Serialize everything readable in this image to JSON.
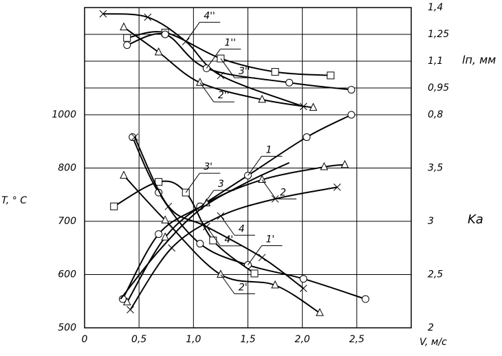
{
  "chart_data": {
    "type": "line",
    "x_label": "V, м/с",
    "y_label": "T, ° C",
    "y_right_label": "Kа",
    "y2_label": "lп, мм",
    "xlim": [
      0,
      3
    ],
    "xticks": [
      0,
      {
        "value": 0.5,
        "label": "0,5"
      },
      {
        "value": 1.0,
        "label": "1,0"
      },
      {
        "value": 1.5,
        "label": "1,5"
      },
      {
        "value": 2.0,
        "label": "2,0"
      },
      {
        "value": 2.5,
        "label": "2,5"
      }
    ],
    "tticks": [
      500,
      600,
      700,
      800,
      1000
    ],
    "ylim": [
      2,
      4
    ],
    "yticks": [
      2,
      {
        "value": 2.5,
        "label": "2,5"
      },
      3,
      {
        "value": 3.5,
        "label": "3,5"
      }
    ],
    "y2lim": [
      0.8,
      1.4
    ],
    "y2ticks": [
      {
        "value": 0.8,
        "label": "0,8"
      },
      {
        "value": 0.95,
        "label": "0,95"
      },
      {
        "value": 1.1,
        "label": "1,1"
      },
      {
        "value": 1.25,
        "label": "1,25"
      },
      {
        "value": 1.4,
        "label": "1,4"
      }
    ],
    "grid": true,
    "series": [
      {
        "name": "1",
        "color": "#000",
        "marker": "circle",
        "x": [
          0.35,
          0.68,
          1.06,
          1.5,
          2.04,
          2.45
        ],
        "values": [
          2.27,
          2.88,
          3.14,
          3.43,
          3.79,
          4.0
        ]
      },
      {
        "name": "2",
        "color": "#000",
        "marker": "triangle",
        "x": [
          0.39,
          0.74,
          1.12,
          1.63,
          2.2,
          2.39
        ],
        "values": [
          2.24,
          2.85,
          3.17,
          3.39,
          3.51,
          3.53
        ]
      },
      {
        "name": "3",
        "color": "#000",
        "marker": "none",
        "x": [
          0.33,
          0.68,
          1.06,
          1.5,
          1.88
        ],
        "values": [
          2.27,
          2.72,
          3.11,
          3.37,
          3.55
        ]
      },
      {
        "name": "4",
        "color": "#000",
        "marker": "cross",
        "x": [
          0.42,
          0.8,
          1.25,
          1.75,
          2.32
        ],
        "values": [
          2.17,
          2.75,
          3.05,
          3.21,
          3.32
        ]
      },
      {
        "name": "1'",
        "color": "#000",
        "marker": "circle",
        "x": [
          0.44,
          0.68,
          1.06,
          1.5,
          2.01,
          2.58
        ],
        "values": [
          3.79,
          3.27,
          2.79,
          2.59,
          2.46,
          2.27
        ]
      },
      {
        "name": "2'",
        "color": "#000",
        "marker": "triangle",
        "x": [
          0.36,
          0.74,
          1.25,
          1.75,
          2.16
        ],
        "values": [
          3.43,
          3.01,
          2.5,
          2.4,
          2.14
        ]
      },
      {
        "name": "3'",
        "color": "#000",
        "marker": "square",
        "x": [
          0.27,
          0.68,
          0.93,
          1.18,
          1.56
        ],
        "values": [
          3.14,
          3.37,
          3.27,
          2.82,
          2.51
        ]
      },
      {
        "name": "4'",
        "color": "#000",
        "marker": "cross",
        "x": [
          0.46,
          0.77,
          1.12,
          1.63,
          2.01
        ],
        "values": [
          3.79,
          3.14,
          2.95,
          2.66,
          2.37
        ]
      },
      {
        "name": "4''",
        "color": "#000",
        "marker": "cross",
        "axis": "y2",
        "x": [
          0.17,
          0.58,
          0.93,
          1.25,
          2.01
        ],
        "values": [
          1.365,
          1.346,
          1.21,
          1.02,
          0.846
        ]
      },
      {
        "name": "3''",
        "color": "#000",
        "marker": "square",
        "axis": "y2",
        "x": [
          0.39,
          0.74,
          1.25,
          1.75,
          2.26
        ],
        "values": [
          1.23,
          1.26,
          1.115,
          1.04,
          1.02
        ]
      },
      {
        "name": "1''",
        "color": "#000",
        "marker": "circle",
        "axis": "y2",
        "x": [
          0.39,
          0.74,
          1.12,
          1.88,
          2.45
        ],
        "values": [
          1.19,
          1.25,
          1.06,
          0.98,
          0.94
        ]
      },
      {
        "name": "2''",
        "color": "#000",
        "marker": "triangle",
        "axis": "y2",
        "x": [
          0.36,
          0.68,
          1.06,
          1.63,
          2.1
        ],
        "values": [
          1.29,
          1.15,
          0.98,
          0.885,
          0.84
        ]
      }
    ]
  }
}
